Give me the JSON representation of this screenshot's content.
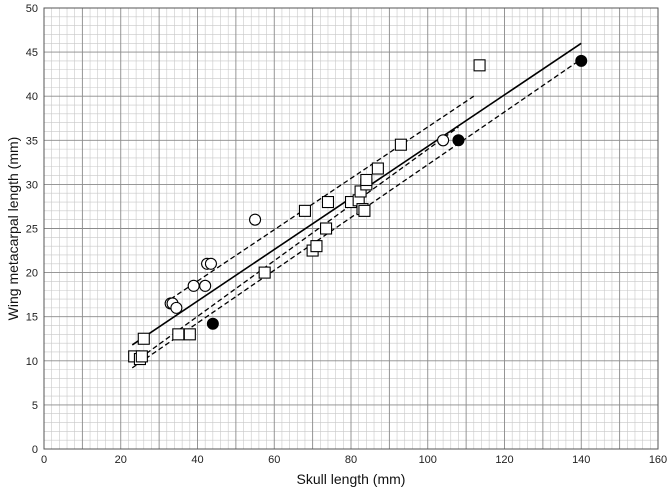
{
  "chart_data": {
    "type": "scatter",
    "title": "",
    "xlabel": "Skull length (mm)",
    "ylabel": "Wing metacarpal length (mm)",
    "xlim": [
      0,
      160
    ],
    "ylim": [
      0,
      50
    ],
    "xticks": [
      0,
      20,
      40,
      60,
      80,
      100,
      120,
      140,
      160
    ],
    "yticks": [
      0,
      5,
      10,
      15,
      20,
      25,
      30,
      35,
      40,
      45,
      50
    ],
    "grid": true,
    "legend": "none",
    "series": [
      {
        "marker": "open-square",
        "points": [
          [
            23.5,
            10.5
          ],
          [
            25,
            10.2
          ],
          [
            25.5,
            10.5
          ],
          [
            26,
            12.5
          ],
          [
            35,
            13
          ],
          [
            38,
            13
          ],
          [
            57.5,
            20
          ],
          [
            68,
            27
          ],
          [
            70,
            22.5
          ],
          [
            71,
            23
          ],
          [
            73.5,
            25
          ],
          [
            74,
            28
          ],
          [
            80,
            28
          ],
          [
            82,
            28.2
          ],
          [
            82.5,
            29.2
          ],
          [
            83,
            27.2
          ],
          [
            83.5,
            27
          ],
          [
            84,
            30
          ],
          [
            84,
            30.5
          ],
          [
            87,
            31.8
          ],
          [
            93,
            34.5
          ],
          [
            113.5,
            43.5
          ]
        ]
      },
      {
        "marker": "open-circle",
        "points": [
          [
            33,
            16.5
          ],
          [
            33.5,
            16.5
          ],
          [
            34.5,
            16
          ],
          [
            39,
            18.5
          ],
          [
            42,
            18.5
          ],
          [
            42.5,
            21
          ],
          [
            43.5,
            21
          ],
          [
            55,
            26
          ],
          [
            104,
            35
          ]
        ]
      },
      {
        "marker": "filled-circle",
        "points": [
          [
            44,
            14.2
          ],
          [
            108,
            35
          ],
          [
            140,
            44
          ]
        ]
      }
    ],
    "lines": [
      {
        "style": "solid",
        "points": [
          [
            23,
            11.8
          ],
          [
            140,
            46
          ]
        ]
      },
      {
        "style": "dashed",
        "points": [
          [
            33,
            17
          ],
          [
            112,
            40
          ]
        ]
      },
      {
        "style": "dashed",
        "points": [
          [
            25,
            10.3
          ],
          [
            108,
            36.5
          ]
        ]
      },
      {
        "style": "dashed",
        "points": [
          [
            23,
            9.2
          ],
          [
            140,
            44.2
          ]
        ]
      }
    ]
  }
}
